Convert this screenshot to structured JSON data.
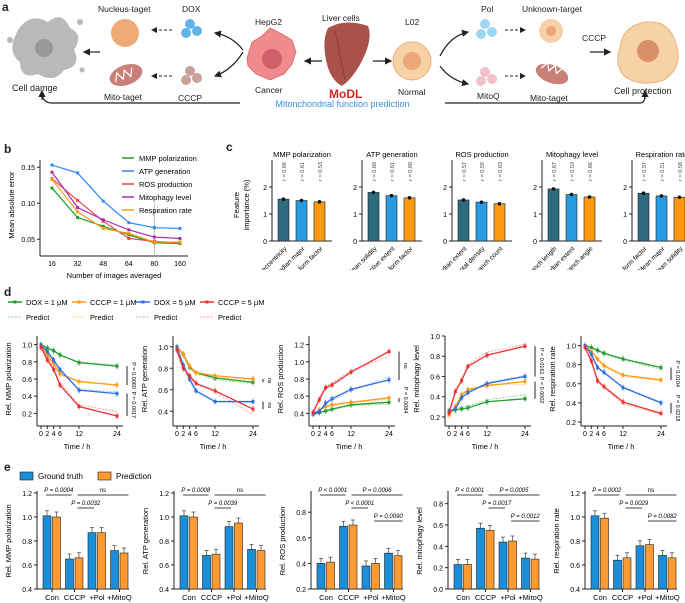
{
  "panels": {
    "a": "a",
    "b": "b",
    "c": "c",
    "d": "d",
    "e": "e"
  },
  "schematic": {
    "left_end": "Cell damge",
    "nucleus_target": "Nucleus-taget",
    "mito_target_left": "Mito-taget",
    "dox": "DOX",
    "cccp_left": "CCCP",
    "hepg2": "HepG2",
    "cancer": "Cancer",
    "liver": "Liver cells",
    "modl": "MoDL",
    "prediction": "Mitonchondrial function prediction",
    "l02": "L02",
    "normal": "Normal",
    "pol": "Pol",
    "mitoq": "MitoQ",
    "unknown_target": "Unknown-target",
    "mito_target_right": "Mito-taget",
    "cccp_right": "CCCP",
    "right_end": "Cell protection",
    "colors": {
      "modl": "#d62728",
      "prediction": "#3a8fd9",
      "cancer": "#f08a8f",
      "normal": "#f7c89a",
      "liver": "#a8524a",
      "gray": "#b9b9b9"
    }
  },
  "chart_data": [
    {
      "id": "b",
      "type": "line",
      "title": "",
      "xlabel": "Number of images averaged",
      "ylabel": "Mean absolute error",
      "categories": [
        "16",
        "32",
        "48",
        "64",
        "80",
        "160"
      ],
      "ylim": [
        0.035,
        0.16
      ],
      "yticks": [
        "0.05",
        "0.10",
        "0.15"
      ],
      "legend": "top-right",
      "series": [
        {
          "name": "MMP polarization",
          "color": "#1f9e2f",
          "values": [
            0.121,
            0.08,
            0.068,
            0.056,
            0.045,
            0.044
          ]
        },
        {
          "name": "ATP generation",
          "color": "#2d8cf0",
          "values": [
            0.153,
            0.142,
            0.103,
            0.073,
            0.066,
            0.065
          ]
        },
        {
          "name": "ROS production",
          "color": "#f04040",
          "values": [
            0.134,
            0.104,
            0.075,
            0.051,
            0.047,
            0.045
          ]
        },
        {
          "name": "Mitophagy level",
          "color": "#a030b0",
          "values": [
            0.143,
            0.094,
            0.077,
            0.063,
            0.053,
            0.051
          ]
        },
        {
          "name": "Respiration rate",
          "color": "#ff9a10",
          "values": [
            0.133,
            0.088,
            0.065,
            0.058,
            0.046,
            0.046
          ]
        }
      ]
    },
    {
      "id": "c",
      "type": "bar",
      "ylabel": "Feature importance (%)",
      "ylim": [
        0,
        3
      ],
      "yticks": [
        "0",
        "1",
        "2"
      ],
      "colors": [
        "#2e6b7e",
        "#2a9ae0",
        "#ff9a10"
      ],
      "subplots": [
        {
          "title": "MMP polarization",
          "categories": [
            "Network eccentricity",
            "Median major",
            "Median form factor"
          ],
          "values": [
            1.55,
            1.5,
            1.45
          ],
          "r": [
            "r = 0.66",
            "r = 0.61",
            "r = 0.53"
          ]
        },
        {
          "title": "ATP generation",
          "categories": [
            "Mean solidity",
            "Network effective extent",
            "Median form factor"
          ],
          "values": [
            1.8,
            1.68,
            1.6
          ],
          "r": [
            "r = 0.68",
            "r = 0.61",
            "r = 0.60"
          ]
        },
        {
          "title": "ROS production",
          "categories": [
            "Median extent",
            "Std. total density",
            "Mean branch count"
          ],
          "values": [
            1.52,
            1.44,
            1.38
          ],
          "r": [
            "r = 0.57",
            "r = 0.59",
            "r = 0.63"
          ]
        },
        {
          "title": "Mitophagy level",
          "categories": [
            "Mean std. branch length",
            "Median extent",
            "Mean std. branch angle"
          ],
          "values": [
            1.93,
            1.72,
            1.63
          ],
          "r": [
            "r = 0.67",
            "r = 0.53",
            "r = 0.66"
          ]
        },
        {
          "title": "Respiration rate",
          "categories": [
            "Mean form factor",
            "Mean major",
            "Mean solidity"
          ],
          "values": [
            1.77,
            1.67,
            1.62
          ],
          "r": [
            "r = 0.57",
            "r = 0.51",
            "r = 0.58"
          ]
        }
      ]
    },
    {
      "id": "d",
      "type": "line",
      "xlabel": "Time / h",
      "x": [
        0,
        2,
        4,
        6,
        12,
        24
      ],
      "xticks": [
        "0",
        "2",
        "4",
        "6",
        "12",
        "24"
      ],
      "legend_items": [
        {
          "name": "DOX = 1 μM",
          "color": "#1f9e2f",
          "predict": "Predict"
        },
        {
          "name": "CCCP = 1 μM",
          "color": "#ff9a10",
          "predict": "Predict"
        },
        {
          "name": "DOX = 5 μM",
          "color": "#2d6fe0",
          "predict": "Predict"
        },
        {
          "name": "CCCP = 5 μM",
          "color": "#f03030",
          "predict": "Predict"
        }
      ],
      "subplots": [
        {
          "ylabel": "Rel. MMP polarization",
          "ylim": [
            0.1,
            1.1
          ],
          "yticks": [
            0.2,
            0.4,
            0.6,
            0.8,
            1.0
          ],
          "series": [
            [
              1.0,
              0.96,
              0.93,
              0.88,
              0.79,
              0.75
            ],
            [
              0.98,
              0.88,
              0.78,
              0.66,
              0.57,
              0.53
            ],
            [
              0.99,
              0.92,
              0.82,
              0.71,
              0.47,
              0.43
            ],
            [
              0.97,
              0.82,
              0.71,
              0.53,
              0.28,
              0.17
            ]
          ],
          "predict": [
            [
              0.99,
              0.95,
              0.92,
              0.87,
              0.8,
              0.76
            ],
            [
              0.96,
              0.86,
              0.76,
              0.64,
              0.58,
              0.52
            ],
            [
              0.97,
              0.9,
              0.8,
              0.72,
              0.48,
              0.45
            ],
            [
              0.95,
              0.85,
              0.73,
              0.56,
              0.3,
              0.22
            ]
          ],
          "annotations": [
            "P = 0.0060",
            "P = 0.0017"
          ]
        },
        {
          "ylabel": "Rel. ATP generation",
          "ylim": [
            0.3,
            1.1
          ],
          "yticks": [
            0.4,
            0.6,
            0.8,
            1.0
          ],
          "series": [
            [
              1.0,
              0.93,
              0.81,
              0.76,
              0.71,
              0.67
            ],
            [
              0.99,
              0.93,
              0.82,
              0.76,
              0.73,
              0.7
            ],
            [
              0.99,
              0.83,
              0.7,
              0.59,
              0.49,
              0.49
            ],
            [
              0.97,
              0.8,
              0.73,
              0.66,
              0.59,
              0.42
            ]
          ],
          "predict": [
            [
              0.99,
              0.92,
              0.8,
              0.75,
              0.69,
              0.66
            ],
            [
              0.98,
              0.9,
              0.8,
              0.74,
              0.72,
              0.69
            ],
            [
              0.96,
              0.82,
              0.68,
              0.58,
              0.49,
              0.48
            ],
            [
              0.94,
              0.78,
              0.71,
              0.65,
              0.58,
              0.37
            ]
          ],
          "annotations": [
            "ns",
            "ns"
          ]
        },
        {
          "ylabel": "Rel. ROS production",
          "ylim": [
            0.3,
            1.3
          ],
          "yticks": [
            0.4,
            0.6,
            0.8,
            1.0,
            1.2
          ],
          "series": [
            [
              0.39,
              0.41,
              0.43,
              0.45,
              0.5,
              0.53
            ],
            [
              0.4,
              0.44,
              0.48,
              0.5,
              0.53,
              0.58
            ],
            [
              0.4,
              0.42,
              0.52,
              0.57,
              0.68,
              0.79
            ],
            [
              0.41,
              0.56,
              0.7,
              0.73,
              0.88,
              1.12
            ]
          ],
          "predict": [
            [
              0.38,
              0.4,
              0.42,
              0.44,
              0.49,
              0.51
            ],
            [
              0.39,
              0.43,
              0.47,
              0.49,
              0.52,
              0.56
            ],
            [
              0.4,
              0.44,
              0.5,
              0.55,
              0.66,
              0.83
            ],
            [
              0.42,
              0.58,
              0.72,
              0.75,
              0.9,
              1.06
            ]
          ],
          "annotations": [
            "P = 0.0084",
            "ns"
          ]
        },
        {
          "ylabel": "Rel. mitophagy level",
          "ylim": [
            0.15,
            1.0
          ],
          "yticks": [
            0.2,
            0.4,
            0.6,
            0.8,
            1.0
          ],
          "series": [
            [
              0.25,
              0.27,
              0.28,
              0.29,
              0.35,
              0.38
            ],
            [
              0.22,
              0.3,
              0.42,
              0.47,
              0.51,
              0.55
            ],
            [
              0.26,
              0.28,
              0.39,
              0.44,
              0.53,
              0.6
            ],
            [
              0.24,
              0.45,
              0.56,
              0.7,
              0.81,
              0.9
            ]
          ],
          "predict": [
            [
              0.24,
              0.28,
              0.3,
              0.31,
              0.37,
              0.42
            ],
            [
              0.21,
              0.29,
              0.41,
              0.46,
              0.52,
              0.52
            ],
            [
              0.25,
              0.29,
              0.4,
              0.45,
              0.54,
              0.61
            ],
            [
              0.23,
              0.47,
              0.57,
              0.72,
              0.84,
              0.92
            ]
          ],
          "annotations": [
            "P = 0.0002",
            "P = 0.0161"
          ]
        },
        {
          "ylabel": "Rel. respiration rate",
          "ylim": [
            0.2,
            1.1
          ],
          "yticks": [
            0.2,
            0.4,
            0.6,
            0.8,
            1.0
          ],
          "series": [
            [
              1.0,
              0.98,
              0.95,
              0.92,
              0.86,
              0.77
            ],
            [
              0.99,
              0.94,
              0.86,
              0.79,
              0.69,
              0.64
            ],
            [
              1.0,
              0.91,
              0.77,
              0.72,
              0.56,
              0.4
            ],
            [
              0.98,
              0.84,
              0.63,
              0.57,
              0.41,
              0.29
            ]
          ],
          "predict": [
            [
              0.99,
              0.97,
              0.94,
              0.91,
              0.85,
              0.75
            ],
            [
              0.98,
              0.92,
              0.84,
              0.77,
              0.68,
              0.63
            ],
            [
              0.99,
              0.89,
              0.76,
              0.71,
              0.57,
              0.41
            ],
            [
              0.97,
              0.82,
              0.62,
              0.56,
              0.39,
              0.28
            ]
          ],
          "annotations": [
            "P = 0.0104",
            "P = 0.0218"
          ]
        }
      ]
    },
    {
      "id": "e",
      "type": "bar",
      "categories": [
        "Con",
        "CCCP",
        "+Pol",
        "+MitoQ"
      ],
      "legend": [
        {
          "name": "Ground truth",
          "color": "#1a8fd8"
        },
        {
          "name": "Prediction",
          "color": "#ff9a30"
        }
      ],
      "subplots": [
        {
          "ylabel": "Rel. MMP polarization",
          "ylim": [
            0.4,
            1.2
          ],
          "yticks": [
            "0.4",
            "0.6",
            "0.8",
            "1.0",
            "1.2"
          ],
          "series": [
            {
              "name": "Ground truth",
              "values": [
                1.01,
                0.65,
                0.87,
                0.72
              ]
            },
            {
              "name": "Prediction",
              "values": [
                1.0,
                0.66,
                0.87,
                0.7
              ]
            }
          ],
          "brackets": [
            {
              "from": 0,
              "to": 1,
              "label": "P = 0.0004",
              "level": 0
            },
            {
              "from": 1,
              "to": 3,
              "label": "ns",
              "level": 0
            },
            {
              "from": 1,
              "to": 2,
              "label": "P = 0.0032",
              "level": 1
            }
          ]
        },
        {
          "ylabel": "Rel. ATP generation",
          "ylim": [
            0.4,
            1.2
          ],
          "yticks": [
            "0.4",
            "0.6",
            "0.8",
            "1.0",
            "1.2"
          ],
          "series": [
            {
              "name": "Ground truth",
              "values": [
                1.01,
                0.68,
                0.92,
                0.73
              ]
            },
            {
              "name": "Prediction",
              "values": [
                1.0,
                0.69,
                0.95,
                0.72
              ]
            }
          ],
          "brackets": [
            {
              "from": 0,
              "to": 1,
              "label": "P = 0.0008",
              "level": 0
            },
            {
              "from": 1,
              "to": 3,
              "label": "ns",
              "level": 0
            },
            {
              "from": 1,
              "to": 2,
              "label": "P = 0.0039",
              "level": 1
            }
          ]
        },
        {
          "ylabel": "Rel. ROS production",
          "ylim": [
            0.2,
            0.95
          ],
          "yticks": [
            "0.2",
            "0.4",
            "0.6",
            "0.8"
          ],
          "series": [
            {
              "name": "Ground truth",
              "values": [
                0.4,
                0.69,
                0.38,
                0.48
              ]
            },
            {
              "name": "Prediction",
              "values": [
                0.41,
                0.7,
                0.4,
                0.46
              ]
            }
          ],
          "brackets": [
            {
              "from": 0,
              "to": 1,
              "label": "P < 0.0001",
              "level": 0
            },
            {
              "from": 1,
              "to": 3,
              "label": "P = 0.0006",
              "level": 0
            },
            {
              "from": 1,
              "to": 2,
              "label": "P < 0.0001",
              "level": 1
            },
            {
              "from": 2,
              "to": 3,
              "label": "P = 0.0090",
              "level": 2
            }
          ]
        },
        {
          "ylabel": "Rel. mitophagy level",
          "ylim": [
            0.0,
            0.9
          ],
          "yticks": [
            "0.0",
            "0.2",
            "0.4",
            "0.6",
            "0.8"
          ],
          "series": [
            {
              "name": "Ground truth",
              "values": [
                0.23,
                0.57,
                0.44,
                0.29
              ]
            },
            {
              "name": "Prediction",
              "values": [
                0.23,
                0.55,
                0.45,
                0.28
              ]
            }
          ],
          "brackets": [
            {
              "from": 0,
              "to": 1,
              "label": "P < 0.0001",
              "level": 0
            },
            {
              "from": 1,
              "to": 3,
              "label": "P = 0.0005",
              "level": 0
            },
            {
              "from": 1,
              "to": 2,
              "label": "P = 0.0017",
              "level": 1
            },
            {
              "from": 2,
              "to": 3,
              "label": "P = 0.0012",
              "level": 2
            }
          ]
        },
        {
          "ylabel": "Rel. respiration rate",
          "ylim": [
            0.4,
            1.2
          ],
          "yticks": [
            "0.4",
            "0.6",
            "0.8",
            "1.0",
            "1.2"
          ],
          "series": [
            {
              "name": "Ground truth",
              "values": [
                1.01,
                0.64,
                0.76,
                0.68
              ]
            },
            {
              "name": "Prediction",
              "values": [
                0.99,
                0.66,
                0.77,
                0.66
              ]
            }
          ],
          "brackets": [
            {
              "from": 0,
              "to": 1,
              "label": "P = 0.0002",
              "level": 0
            },
            {
              "from": 1,
              "to": 3,
              "label": "ns",
              "level": 0
            },
            {
              "from": 1,
              "to": 2,
              "label": "P = 0.0029",
              "level": 1
            },
            {
              "from": 2,
              "to": 3,
              "label": "P = 0.0082",
              "level": 2
            }
          ]
        }
      ]
    }
  ]
}
